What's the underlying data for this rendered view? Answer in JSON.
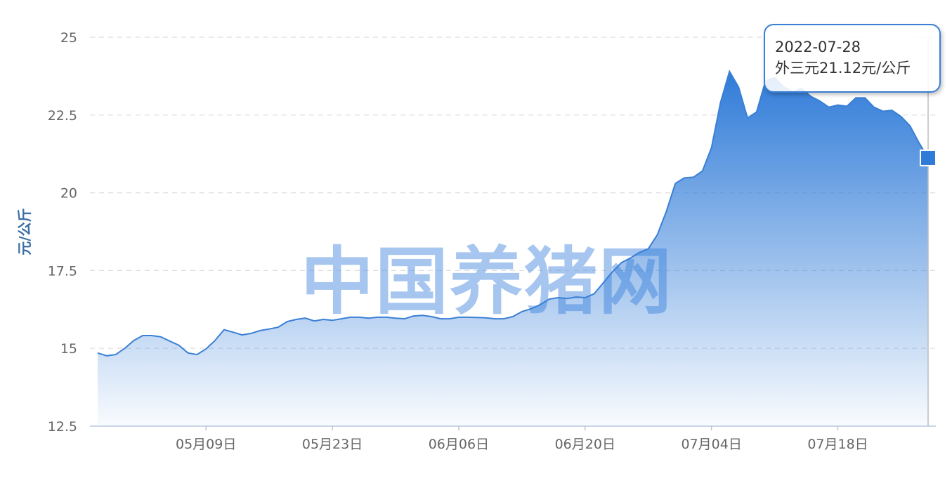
{
  "chart_data": {
    "type": "area",
    "title": "",
    "xlabel": "",
    "ylabel": "元/公斤",
    "ylim": [
      12.5,
      25
    ],
    "yticks": [
      "25",
      "22.5",
      "20",
      "17.5",
      "15",
      "12.5"
    ],
    "xtick_labels": [
      {
        "date": "2022-05-09",
        "label": "05月09日"
      },
      {
        "date": "2022-05-23",
        "label": "05月23日"
      },
      {
        "date": "2022-06-06",
        "label": "06月06日"
      },
      {
        "date": "2022-06-20",
        "label": "06月20日"
      },
      {
        "date": "2022-07-04",
        "label": "07月04日"
      },
      {
        "date": "2022-07-18",
        "label": "07月18日"
      }
    ],
    "grid": true,
    "color": "#3a7fd5",
    "x": [
      "2022-04-27",
      "2022-04-28",
      "2022-04-29",
      "2022-04-30",
      "2022-05-01",
      "2022-05-02",
      "2022-05-03",
      "2022-05-04",
      "2022-05-05",
      "2022-05-06",
      "2022-05-07",
      "2022-05-08",
      "2022-05-09",
      "2022-05-10",
      "2022-05-11",
      "2022-05-12",
      "2022-05-13",
      "2022-05-14",
      "2022-05-15",
      "2022-05-16",
      "2022-05-17",
      "2022-05-18",
      "2022-05-19",
      "2022-05-20",
      "2022-05-21",
      "2022-05-22",
      "2022-05-23",
      "2022-05-24",
      "2022-05-25",
      "2022-05-26",
      "2022-05-27",
      "2022-05-28",
      "2022-05-29",
      "2022-05-30",
      "2022-05-31",
      "2022-06-01",
      "2022-06-02",
      "2022-06-03",
      "2022-06-04",
      "2022-06-05",
      "2022-06-06",
      "2022-06-07",
      "2022-06-08",
      "2022-06-09",
      "2022-06-10",
      "2022-06-11",
      "2022-06-12",
      "2022-06-13",
      "2022-06-14",
      "2022-06-15",
      "2022-06-16",
      "2022-06-17",
      "2022-06-18",
      "2022-06-19",
      "2022-06-20",
      "2022-06-21",
      "2022-06-22",
      "2022-06-23",
      "2022-06-24",
      "2022-06-25",
      "2022-06-26",
      "2022-06-27",
      "2022-06-28",
      "2022-06-29",
      "2022-06-30",
      "2022-07-01",
      "2022-07-02",
      "2022-07-03",
      "2022-07-04",
      "2022-07-05",
      "2022-07-06",
      "2022-07-07",
      "2022-07-08",
      "2022-07-09",
      "2022-07-10",
      "2022-07-11",
      "2022-07-12",
      "2022-07-13",
      "2022-07-14",
      "2022-07-15",
      "2022-07-16",
      "2022-07-17",
      "2022-07-18",
      "2022-07-19",
      "2022-07-20",
      "2022-07-21",
      "2022-07-22",
      "2022-07-23",
      "2022-07-24",
      "2022-07-25",
      "2022-07-26",
      "2022-07-27",
      "2022-07-28"
    ],
    "series": [
      {
        "values": [
          14.85,
          14.76,
          14.8,
          15.0,
          15.25,
          15.41,
          15.41,
          15.37,
          15.23,
          15.1,
          14.85,
          14.8,
          14.98,
          15.25,
          15.6,
          15.52,
          15.43,
          15.48,
          15.57,
          15.62,
          15.68,
          15.86,
          15.93,
          15.97,
          15.88,
          15.93,
          15.9,
          15.95,
          16.0,
          16.0,
          15.97,
          16.0,
          16.0,
          15.97,
          15.95,
          16.04,
          16.06,
          16.02,
          15.95,
          15.95,
          16.0,
          16.0,
          15.99,
          15.98,
          15.95,
          15.95,
          16.02,
          16.18,
          16.27,
          16.4,
          16.58,
          16.63,
          16.6,
          16.65,
          16.63,
          16.75,
          17.1,
          17.45,
          17.75,
          17.9,
          18.08,
          18.2,
          18.65,
          19.4,
          20.3,
          20.48,
          20.5,
          20.7,
          21.45,
          22.9,
          23.9,
          23.4,
          22.4,
          22.6,
          23.6,
          23.7,
          23.4,
          23.25,
          23.35,
          23.1,
          22.95,
          22.75,
          22.82,
          22.78,
          23.05,
          23.05,
          22.75,
          22.62,
          22.65,
          22.45,
          22.15,
          21.6,
          21.12
        ]
      }
    ]
  },
  "watermark": "中国养猪网",
  "tooltip": {
    "date": "2022-07-28",
    "text": "外三元21.12元/公斤"
  }
}
